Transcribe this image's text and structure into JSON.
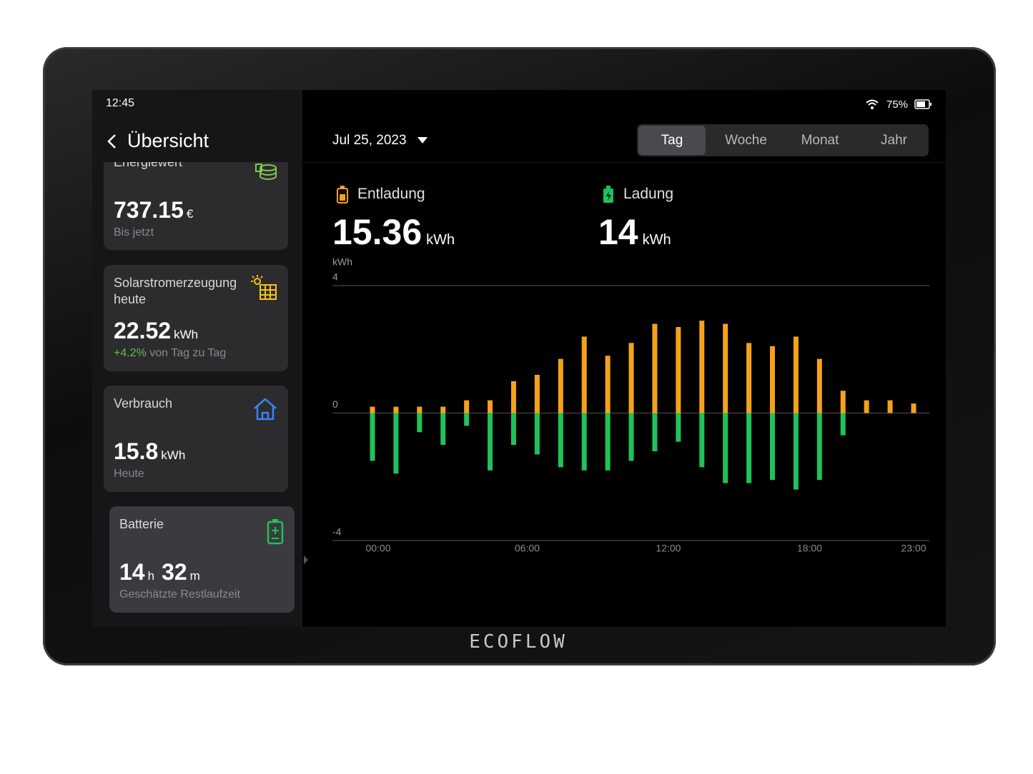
{
  "status": {
    "time": "12:45",
    "battery": "75%"
  },
  "sidebar": {
    "title": "Übersicht",
    "cards": [
      {
        "title": "Energiewert",
        "value": "737.15",
        "unit": "€",
        "sub": "Bis jetzt"
      },
      {
        "title": "Solarstromerzeugung heute",
        "value": "22.52",
        "unit": "kWh",
        "change": "+4.2%",
        "sub": "von Tag zu Tag"
      },
      {
        "title": "Verbrauch",
        "value": "15.8",
        "unit": "kWh",
        "sub": "Heute"
      },
      {
        "title": "Batterie",
        "hours": "14",
        "hours_unit": "h",
        "minutes": "32",
        "minutes_unit": "m",
        "sub": "Geschätzte Restlaufzeit"
      }
    ]
  },
  "header": {
    "date": "Jul 25, 2023",
    "tabs": [
      "Tag",
      "Woche",
      "Monat",
      "Jahr"
    ],
    "active_tab": "Tag"
  },
  "totals": [
    {
      "value": "15.36",
      "unit": "kWh"
    },
    {
      "value": "14",
      "unit": "kWh"
    }
  ],
  "brand": "ECOFLOW",
  "chart_data": {
    "type": "bar",
    "y_label": "kWh",
    "categories": [
      "00:00",
      null,
      null,
      null,
      null,
      null,
      "06:00",
      null,
      null,
      null,
      null,
      null,
      "12:00",
      null,
      null,
      null,
      null,
      null,
      "18:00",
      null,
      null,
      null,
      null,
      "23:00"
    ],
    "series": [
      {
        "name": "Entladung",
        "color": "#f5a21b",
        "values": [
          0.2,
          0.2,
          0.2,
          0.2,
          0.4,
          0.4,
          1.0,
          1.2,
          1.7,
          2.4,
          1.8,
          2.2,
          2.8,
          2.7,
          2.9,
          2.8,
          2.2,
          2.1,
          2.4,
          1.7,
          0.7,
          0.4,
          0.4,
          0.3
        ]
      },
      {
        "name": "Ladung",
        "color": "#1fc25a",
        "values": [
          -1.5,
          -1.9,
          -0.6,
          -1.0,
          -0.4,
          -1.8,
          -1.0,
          -1.3,
          -1.7,
          -1.8,
          -1.8,
          -1.5,
          -1.2,
          -0.9,
          -1.7,
          -2.2,
          -2.2,
          -2.1,
          -2.4,
          -2.1,
          -0.7,
          null,
          null,
          null
        ]
      }
    ],
    "ylim": [
      -4,
      4
    ],
    "yticks": [
      -4,
      0,
      4
    ],
    "grid": true
  }
}
